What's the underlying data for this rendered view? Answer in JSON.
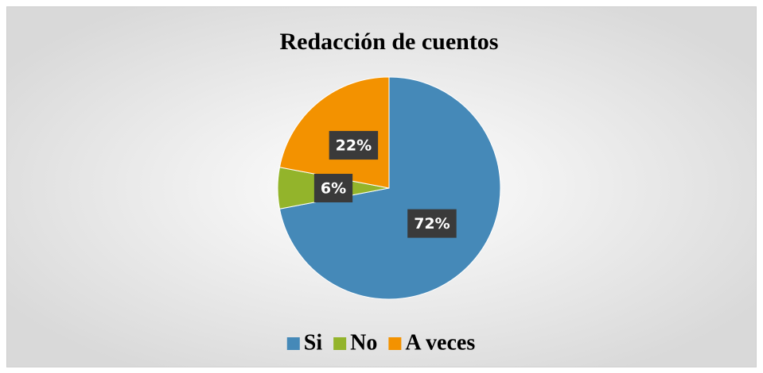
{
  "chart_data": {
    "type": "pie",
    "title": "Redacción de cuentos",
    "categories": [
      "Si",
      "No",
      "A veces"
    ],
    "values": [
      72,
      6,
      22
    ],
    "value_labels": [
      "72%",
      "6%",
      "22%"
    ],
    "colors": [
      "#4589b8",
      "#93b42b",
      "#f39200"
    ],
    "legend": "bottom"
  }
}
